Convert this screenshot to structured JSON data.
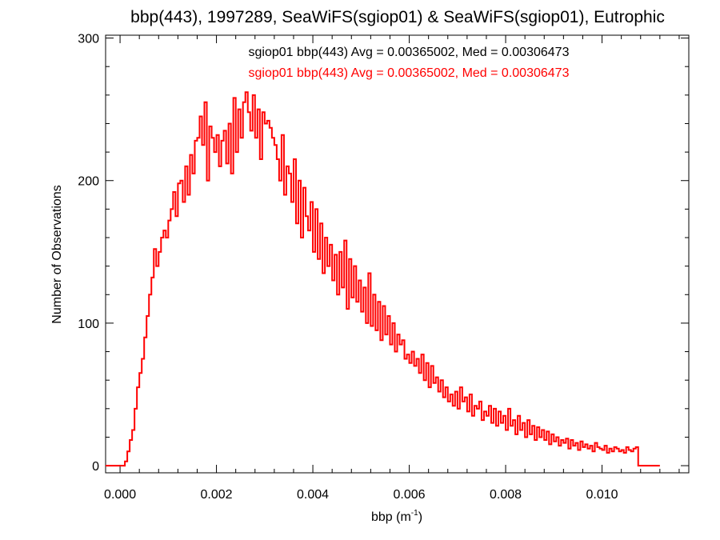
{
  "chart_data": {
    "type": "line",
    "title": "bbp(443), 1997289, SeaWiFS(sgiop01) & SeaWiFS(sgiop01), Eutrophic",
    "xlabel": "bbp (m",
    "xlabel_sup": "-1",
    "xlabel_end": ")",
    "ylabel": "Number of Observations",
    "xlim": [
      -0.0003,
      0.0118
    ],
    "ylim": [
      -5,
      302
    ],
    "x_ticks": [
      0.0,
      0.002,
      0.004,
      0.006,
      0.008,
      0.01
    ],
    "x_tick_labels": [
      "0.000",
      "0.002",
      "0.004",
      "0.006",
      "0.008",
      "0.010"
    ],
    "y_ticks": [
      0,
      100,
      200,
      300
    ],
    "y_tick_labels": [
      "0",
      "100",
      "200",
      "300"
    ],
    "grid": false,
    "annotations": [
      {
        "text": "sgiop01 bbp(443) Avg = 0.00365002, Med = 0.00306473",
        "color": "#000000"
      },
      {
        "text": "sgiop01 bbp(443) Avg = 0.00365002, Med = 0.00306473",
        "color": "#ff0000"
      }
    ],
    "series": [
      {
        "color": "#ff0000",
        "bin_width": 5e-05,
        "x_start": -0.0003,
        "values": [
          0,
          0,
          0,
          0,
          0,
          0,
          0,
          0,
          3,
          10,
          18,
          25,
          40,
          55,
          65,
          75,
          90,
          105,
          120,
          132,
          152,
          140,
          150,
          160,
          165,
          160,
          172,
          180,
          192,
          175,
          198,
          200,
          185,
          210,
          190,
          218,
          205,
          228,
          230,
          245,
          225,
          255,
          200,
          238,
          230,
          220,
          232,
          210,
          228,
          235,
          212,
          240,
          205,
          258,
          220,
          250,
          230,
          255,
          262,
          248,
          235,
          260,
          230,
          250,
          215,
          248,
          240,
          242,
          237,
          230,
          225,
          215,
          200,
          232,
          190,
          210,
          205,
          185,
          215,
          170,
          200,
          160,
          195,
          175,
          165,
          185,
          150,
          180,
          145,
          170,
          135,
          160,
          140,
          155,
          130,
          148,
          120,
          150,
          125,
          158,
          110,
          145,
          118,
          140,
          115,
          130,
          108,
          125,
          100,
          135,
          98,
          120,
          95,
          115,
          88,
          112,
          92,
          105,
          85,
          100,
          80,
          92,
          85,
          88,
          75,
          78,
          72,
          80,
          70,
          75,
          65,
          78,
          60,
          72,
          55,
          70,
          58,
          62,
          52,
          60,
          48,
          55,
          45,
          50,
          42,
          52,
          40,
          55,
          45,
          48,
          38,
          50,
          35,
          42,
          40,
          45,
          32,
          38,
          35,
          42,
          30,
          40,
          28,
          38,
          30,
          35,
          25,
          40,
          28,
          32,
          22,
          35,
          25,
          30,
          20,
          32,
          22,
          28,
          18,
          27,
          20,
          25,
          18,
          24,
          15,
          22,
          17,
          20,
          14,
          18,
          16,
          19,
          12,
          18,
          14,
          16,
          11,
          17,
          13,
          15,
          12,
          14,
          10,
          16,
          13,
          12,
          11,
          14,
          9,
          12,
          10,
          13,
          12,
          10,
          11,
          9,
          13,
          11,
          10,
          12,
          13,
          0,
          0,
          0,
          0,
          0,
          0,
          0,
          0,
          0
        ]
      }
    ]
  }
}
